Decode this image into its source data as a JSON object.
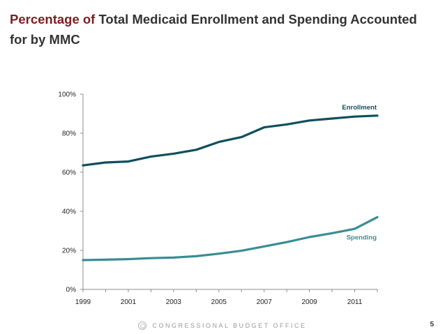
{
  "slide": {
    "title_lead": "Percentage of",
    "title_rest": " Total Medicaid Enrollment and Spending Accounted for by MMC",
    "footer_text": "CONGRESSIONAL BUDGET OFFICE",
    "page_number": "5"
  },
  "colors": {
    "enrollment": "#0d4f5e",
    "spending": "#3a8c94",
    "axis": "#8c8c8c",
    "title_accent": "#7a1f24"
  },
  "chart_data": {
    "type": "line",
    "title": "Percentage of Total Medicaid Enrollment and Spending Accounted for by MMC",
    "xlabel": "",
    "ylabel": "",
    "x": [
      1999,
      2000,
      2001,
      2002,
      2003,
      2004,
      2005,
      2006,
      2007,
      2008,
      2009,
      2010,
      2011,
      2012
    ],
    "xticks": [
      1999,
      2001,
      2003,
      2005,
      2007,
      2009,
      2011
    ],
    "yticks": [
      0,
      20,
      40,
      60,
      80,
      100
    ],
    "ytick_labels": [
      "0%",
      "20%",
      "40%",
      "60%",
      "80%",
      "100%"
    ],
    "ylim": [
      0,
      100
    ],
    "series": [
      {
        "name": "Enrollment",
        "label": "Enrollment",
        "values": [
          63.5,
          65,
          65.5,
          68,
          69.5,
          71.5,
          75.5,
          78,
          83,
          84.5,
          86.5,
          87.5,
          88.5,
          89
        ]
      },
      {
        "name": "Spending",
        "label": "Spending",
        "values": [
          15,
          15.2,
          15.5,
          16,
          16.3,
          17,
          18.3,
          19.8,
          22,
          24.2,
          26.8,
          28.8,
          31,
          37
        ]
      }
    ]
  }
}
